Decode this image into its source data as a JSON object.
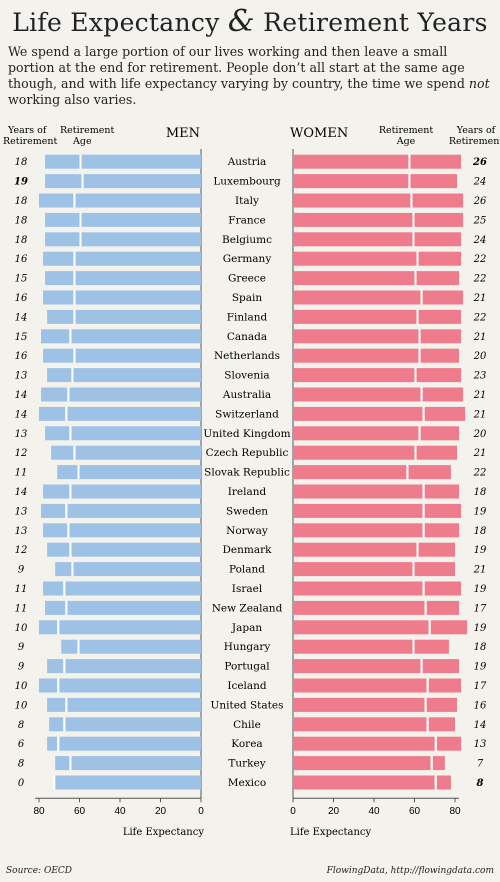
{
  "header": {
    "title_part1": "Life Expectancy",
    "title_amp": "&",
    "title_part2": "Retirement Years",
    "intro_part1": "We spend a large portion of our lives working and then leave a small portion at the end for retirement. People don’t all start at the same age though, and with life expectancy varying by country, the time we spend ",
    "intro_em": "not",
    "intro_part2": " working also varies."
  },
  "footer": {
    "source": "Source: OECD",
    "credit": "FlowingData, http://flowingdata.com"
  },
  "colors": {
    "men": "#9ec2e6",
    "women": "#ef7c8c",
    "background": "#f3f2ec"
  },
  "chart_data": {
    "type": "bar",
    "men_label": "MEN",
    "women_label": "WOMEN",
    "years_header": [
      "Years of",
      "Retirement"
    ],
    "retire_header": [
      "Retirement",
      "Age"
    ],
    "xlabel": "Life Expectancy",
    "xlim": [
      0,
      80
    ],
    "ticks": [
      80,
      60,
      40,
      20,
      0
    ],
    "bold_men_index": 1,
    "bold_women_indices": [
      0,
      32
    ],
    "countries": [
      "Austria",
      "Luxembourg",
      "Italy",
      "France",
      "Belgiumc",
      "Germany",
      "Greece",
      "Spain",
      "Finland",
      "Canada",
      "Netherlands",
      "Slovenia",
      "Australia",
      "Switzerland",
      "United Kingdom",
      "Czech Republic",
      "Slovak Republic",
      "Ireland",
      "Sweden",
      "Norway",
      "Denmark",
      "Poland",
      "Israel",
      "New Zealand",
      "Japan",
      "Hungary",
      "Portugal",
      "Iceland",
      "United States",
      "Chile",
      "Korea",
      "Turkey",
      "Mexico"
    ],
    "men_years": [
      18,
      19,
      18,
      18,
      18,
      16,
      15,
      16,
      14,
      15,
      16,
      13,
      14,
      14,
      13,
      12,
      11,
      14,
      13,
      13,
      12,
      9,
      11,
      11,
      10,
      9,
      9,
      10,
      10,
      8,
      6,
      8,
      0
    ],
    "men_retire": [
      59,
      58,
      62,
      59,
      59,
      62,
      62,
      62,
      62,
      64,
      62,
      63,
      65,
      66,
      64,
      62,
      60,
      64,
      66,
      65,
      64,
      63,
      67,
      66,
      70,
      60,
      67,
      70,
      66,
      67,
      70,
      64,
      72
    ],
    "women_years": [
      26,
      24,
      26,
      25,
      24,
      22,
      22,
      21,
      22,
      21,
      20,
      23,
      21,
      21,
      20,
      21,
      22,
      18,
      19,
      18,
      19,
      21,
      19,
      17,
      19,
      18,
      19,
      17,
      16,
      14,
      13,
      7,
      8
    ],
    "women_retire": [
      57,
      57,
      58,
      59,
      59,
      61,
      60,
      63,
      61,
      62,
      62,
      60,
      63,
      64,
      62,
      60,
      56,
      64,
      64,
      64,
      61,
      59,
      64,
      65,
      67,
      59,
      63,
      66,
      65,
      66,
      70,
      68,
      70
    ]
  }
}
